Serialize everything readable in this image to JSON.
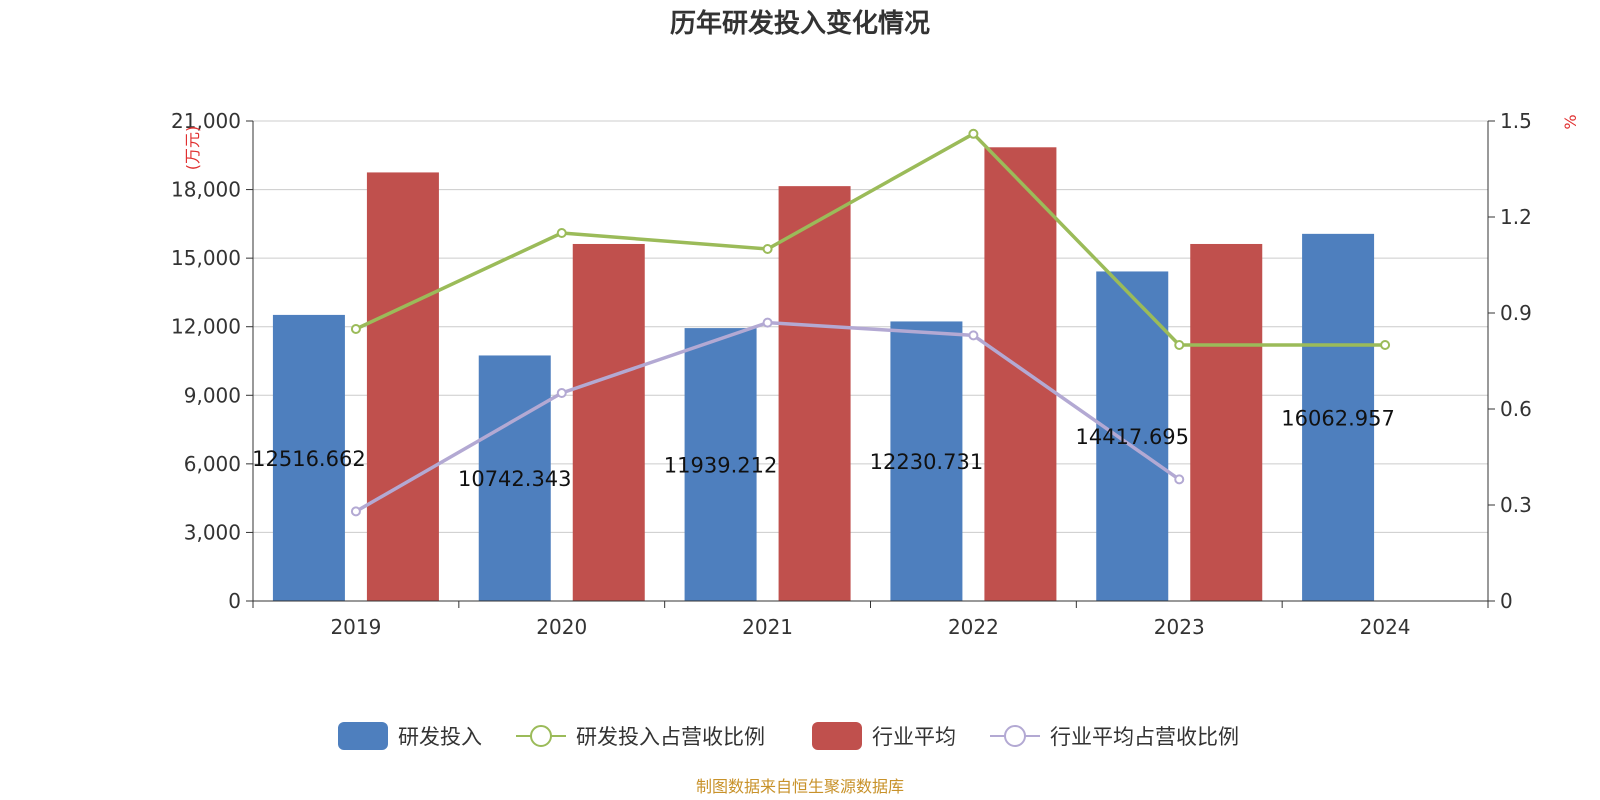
{
  "chart_data": {
    "type": "bar",
    "title": "历年研发投入变化情况",
    "categories": [
      "2019",
      "2020",
      "2021",
      "2022",
      "2023",
      "2024"
    ],
    "y_left": {
      "unit": "(万元)",
      "min": 0,
      "max": 21000,
      "ticks": [
        0,
        3000,
        6000,
        9000,
        12000,
        15000,
        18000,
        21000
      ],
      "tick_labels": [
        "0",
        "3,000",
        "6,000",
        "9,000",
        "12,000",
        "15,000",
        "18,000",
        "21,000"
      ]
    },
    "y_right": {
      "unit": "%",
      "min": 0,
      "max": 1.5,
      "ticks": [
        0,
        0.3,
        0.6,
        0.9,
        1.2,
        1.5
      ],
      "tick_labels": [
        "0",
        "0.3",
        "0.6",
        "0.9",
        "1.2",
        "1.5"
      ]
    },
    "grid": true,
    "legend_position": "bottom",
    "series": [
      {
        "name": "研发投入",
        "type": "bar",
        "axis": "left",
        "color": "#4e7fbe",
        "values": [
          12516.662,
          10742.343,
          11939.212,
          12230.731,
          14417.695,
          16062.957
        ],
        "labels": [
          "12516.662",
          "10742.343",
          "11939.212",
          "12230.731",
          "14417.695",
          "16062.957"
        ]
      },
      {
        "name": "研发投入占营收比例",
        "type": "line",
        "axis": "right",
        "color": "#9bbb59",
        "values": [
          0.85,
          1.15,
          1.1,
          1.46,
          0.8,
          0.8
        ]
      },
      {
        "name": "行业平均",
        "type": "bar",
        "axis": "left",
        "color": "#c0504d",
        "values": [
          18750,
          15620,
          18150,
          19850,
          15620,
          null
        ]
      },
      {
        "name": "行业平均占营收比例",
        "type": "line",
        "axis": "right",
        "color": "#b3a9d3",
        "values": [
          0.28,
          0.65,
          0.87,
          0.83,
          0.38,
          null
        ]
      }
    ],
    "source": "制图数据来自恒生聚源数据库"
  }
}
